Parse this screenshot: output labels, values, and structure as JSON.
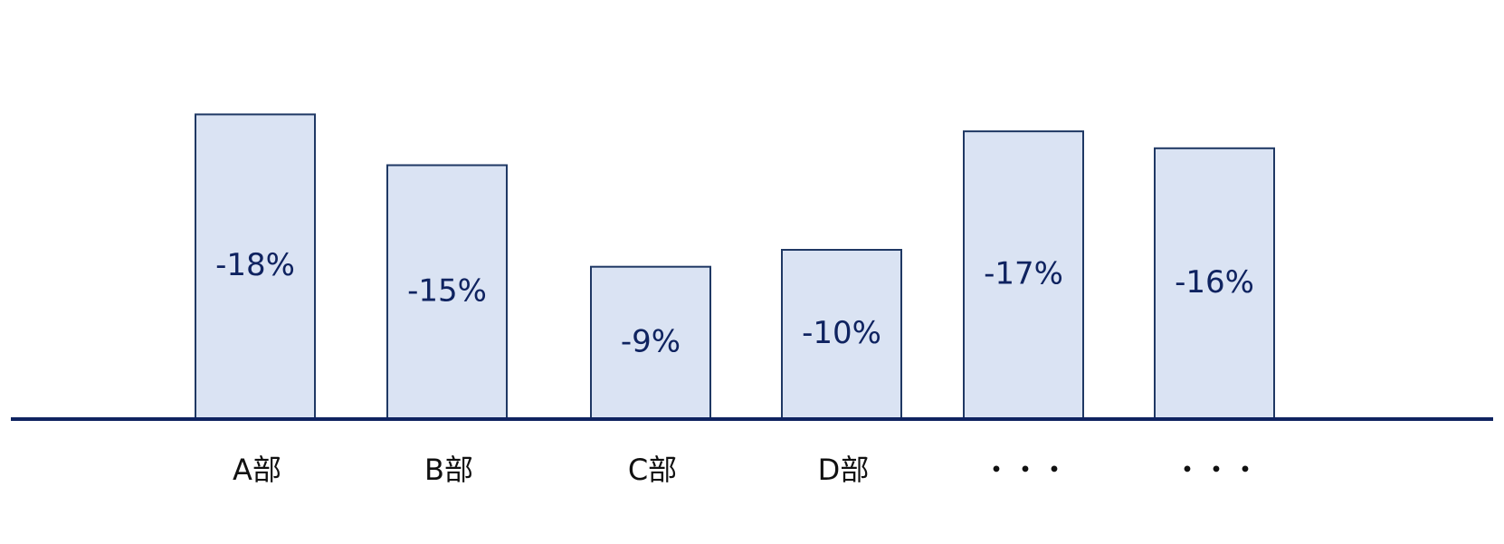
{
  "chart_data": {
    "type": "bar",
    "categories": [
      "A部",
      "B部",
      "C部",
      "D部",
      "・・・",
      "・・・"
    ],
    "values": [
      -18,
      -15,
      -9,
      -10,
      -17,
      -16
    ],
    "data_labels": [
      "-18%",
      "-15%",
      "-9%",
      "-10%",
      "-17%",
      "-16%"
    ],
    "title": "",
    "xlabel": "",
    "ylabel": "",
    "ylim": [
      0,
      20
    ],
    "bar_direction": "upward-magnitude",
    "grid": false,
    "legend": "none",
    "colors": {
      "bar_fill": "#dae3f3",
      "bar_stroke": "#1f3864",
      "axis": "#0f2360",
      "label_text": "#0f2360",
      "category_text": "#111111"
    }
  }
}
